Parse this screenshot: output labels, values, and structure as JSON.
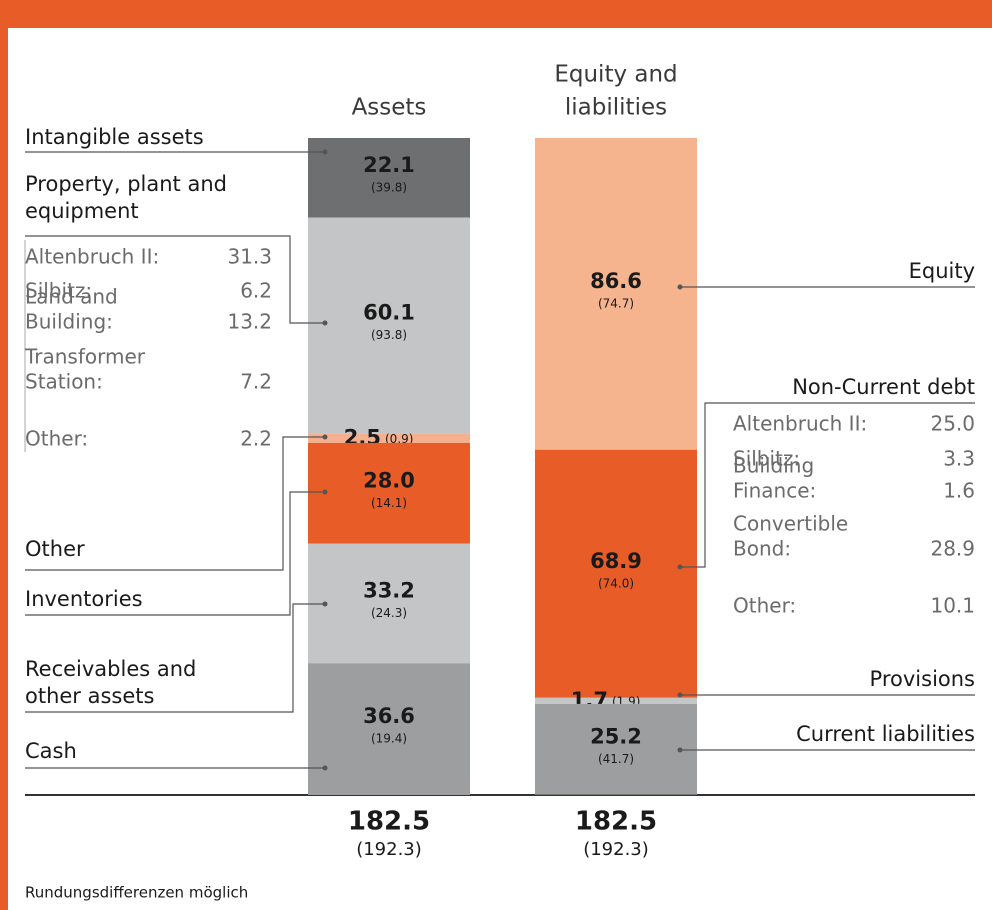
{
  "note": "Rundungsdifferenzen möglich",
  "chart_data": {
    "type": "balance",
    "columns": [
      {
        "title": [
          "Assets"
        ],
        "total": 182.5,
        "total_prior": "(192.3)",
        "segments": [
          {
            "label": [
              "Intangible assets"
            ],
            "value": 22.1,
            "prior": "(39.8)",
            "color": "#6e6f71"
          },
          {
            "label": [
              "Property, plant and",
              "equipment"
            ],
            "value": 60.1,
            "prior": "(93.8)",
            "color": "#c4c5c6",
            "breakdown": [
              {
                "label": [
                  "Altenbruch II:"
                ],
                "value": 31.3
              },
              {
                "label": [
                  "Silbitz:"
                ],
                "value": 6.2
              },
              {
                "label": [
                  "Land and",
                  "Building:"
                ],
                "value": 13.2
              },
              {
                "label": [
                  "Transformer",
                  "Station:"
                ],
                "value": 7.2
              },
              {
                "label": [
                  "Other:"
                ],
                "value": 2.2
              }
            ]
          },
          {
            "label": [
              "Other"
            ],
            "value": 2.5,
            "prior": "(0.9)",
            "color": "#f5b08f"
          },
          {
            "label": [
              "Inventories"
            ],
            "value": 28.0,
            "value_label": "28.0",
            "prior": "(14.1)",
            "color": "#e85d27"
          },
          {
            "label": [
              "Receivables and",
              "other assets"
            ],
            "value": 33.2,
            "prior": "(24.3)",
            "color": "#c4c5c6"
          },
          {
            "label": [
              "Cash"
            ],
            "value": 36.6,
            "prior": "(19.4)",
            "color": "#9d9ea0"
          }
        ]
      },
      {
        "title": [
          "Equity and",
          "liabilities"
        ],
        "total": 182.5,
        "total_prior": "(192.3)",
        "segments": [
          {
            "label": [
              "Equity"
            ],
            "value": 86.6,
            "prior": "(74.7)",
            "color": "#f5b48d"
          },
          {
            "label": [
              "Non-Current debt"
            ],
            "value": 68.9,
            "prior": "(74.0)",
            "color": "#e85d27",
            "breakdown": [
              {
                "label": [
                  "Altenbruch II:"
                ],
                "value": 25.0,
                "value_label": "25.0"
              },
              {
                "label": [
                  "Silbitz:"
                ],
                "value": 3.3
              },
              {
                "label": [
                  "Building",
                  "Finance:"
                ],
                "value": 1.6
              },
              {
                "label": [
                  "Convertible",
                  "Bond:"
                ],
                "value": 28.9
              },
              {
                "label": [
                  "Other:"
                ],
                "value": 10.1
              }
            ]
          },
          {
            "label": [
              "Provisions"
            ],
            "value": 1.7,
            "prior": "(1.9)",
            "color": "#c4c5c6"
          },
          {
            "label": [
              "Current liabilities"
            ],
            "value": 25.2,
            "prior": "(41.7)",
            "color": "#9d9ea0"
          }
        ]
      }
    ]
  }
}
